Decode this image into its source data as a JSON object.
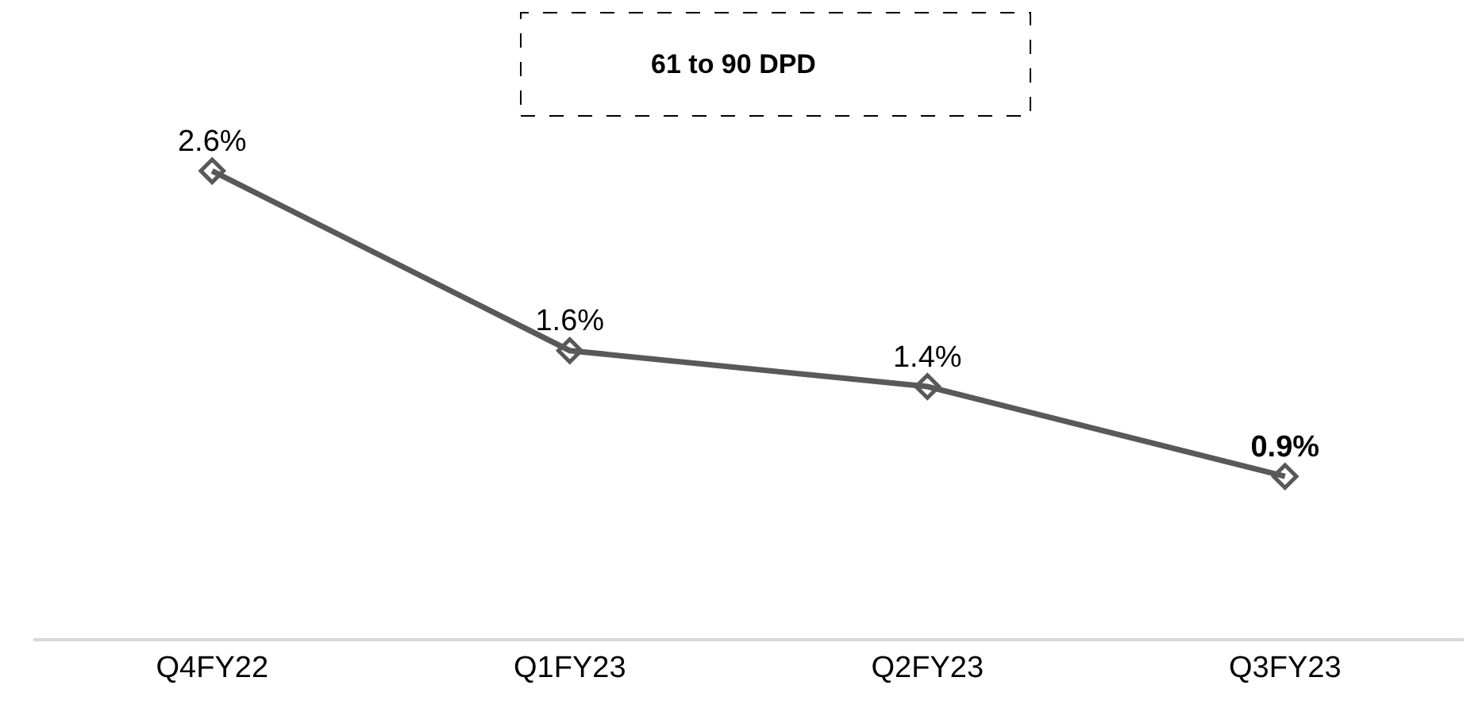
{
  "chart_data": {
    "type": "line",
    "title": "61 to 90 DPD",
    "categories": [
      "Q4FY22",
      "Q1FY23",
      "Q2FY23",
      "Q3FY23"
    ],
    "series": [
      {
        "color": "#595959",
        "values": [
          2.6,
          1.6,
          1.4,
          0.9
        ],
        "value_labels": [
          "2.6%",
          "1.6%",
          "1.4%",
          "0.9%"
        ]
      }
    ],
    "marker": "diamond",
    "line_style": "solid",
    "legend": false,
    "tick_labels": "x"
  }
}
